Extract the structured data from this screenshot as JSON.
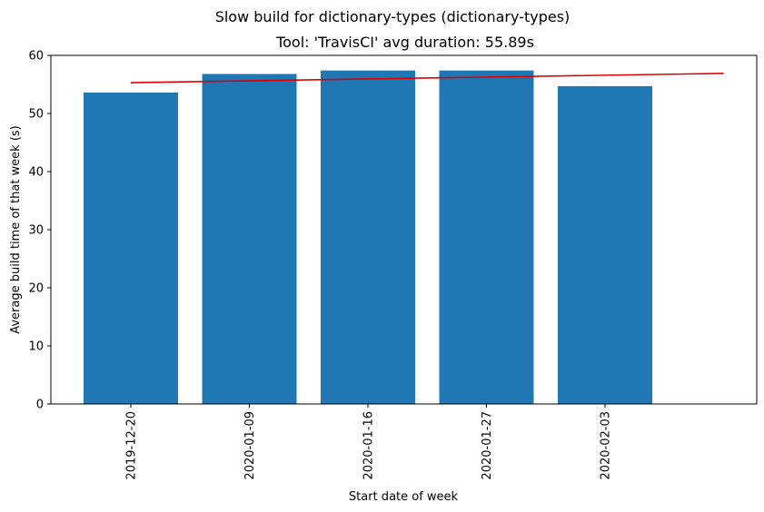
{
  "chart_data": {
    "type": "bar",
    "suptitle": "Slow build for dictionary-types (dictionary-types)",
    "title": "Tool: 'TravisCI' avg duration: 55.89s",
    "xlabel": "Start date of week",
    "ylabel": "Average build time of that week (s)",
    "categories": [
      "2019-12-20",
      "2020-01-09",
      "2020-01-16",
      "2020-01-27",
      "2020-02-03"
    ],
    "values": [
      53.6,
      56.8,
      57.4,
      57.4,
      54.7
    ],
    "bar_color": "#1f77b4",
    "trend": {
      "color": "#e00000",
      "start": {
        "category": "2019-12-20",
        "y": 55.3
      },
      "end": {
        "x_beyond_last_category": 1,
        "y": 56.9
      }
    },
    "ylim": [
      0,
      60
    ],
    "yticks": [
      0,
      10,
      20,
      30,
      40,
      50,
      60
    ],
    "grid": false,
    "legend": "none"
  }
}
